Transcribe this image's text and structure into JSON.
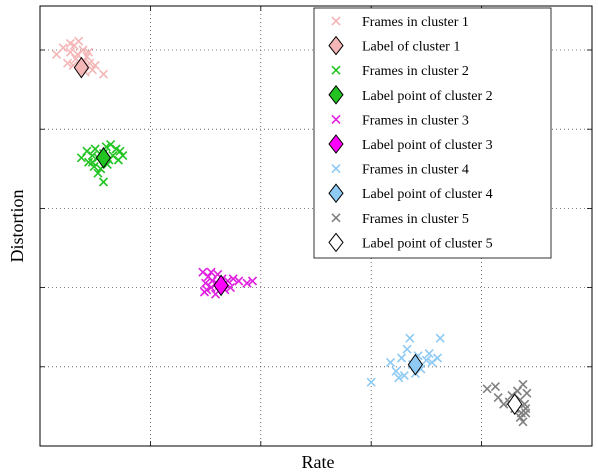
{
  "chart_data": {
    "type": "scatter",
    "title": "",
    "xlabel": "Rate",
    "ylabel": "Distortion",
    "xlim": [
      0,
      10
    ],
    "ylim": [
      0,
      10
    ],
    "xticks": [
      0,
      2,
      4,
      6,
      8,
      10
    ],
    "yticks": [
      0,
      1.8,
      3.6,
      5.4,
      7.2,
      9.0
    ],
    "xtick_labels_visible": false,
    "ytick_labels_visible": false,
    "grid": true,
    "legend_position": "top-right",
    "series": [
      {
        "name": "Frames in cluster 1",
        "label_name": "Label of cluster 1",
        "color": "#f4b6b6",
        "label_fill": "#f4b6b6",
        "points": [
          [
            0.3,
            8.9
          ],
          [
            0.42,
            9.05
          ],
          [
            0.5,
            8.7
          ],
          [
            0.55,
            8.95
          ],
          [
            0.62,
            9.1
          ],
          [
            0.65,
            8.8
          ],
          [
            0.7,
            9.2
          ],
          [
            0.75,
            8.6
          ],
          [
            0.78,
            9.0
          ],
          [
            0.8,
            8.75
          ],
          [
            0.82,
            8.5
          ],
          [
            0.85,
            8.85
          ],
          [
            0.9,
            8.7
          ],
          [
            0.95,
            8.55
          ],
          [
            0.6,
            8.65
          ],
          [
            0.68,
            8.9
          ],
          [
            0.88,
            8.95
          ],
          [
            0.55,
            9.15
          ],
          [
            1.0,
            8.65
          ],
          [
            1.15,
            8.45
          ]
        ],
        "label_point": [
          0.75,
          8.6
        ]
      },
      {
        "name": "Frames in cluster 2",
        "label_name": "Label point of cluster 2",
        "color": "#22c422",
        "label_fill": "#22c422",
        "points": [
          [
            0.75,
            6.55
          ],
          [
            0.85,
            6.7
          ],
          [
            0.88,
            6.45
          ],
          [
            0.95,
            6.6
          ],
          [
            0.98,
            6.35
          ],
          [
            1.0,
            6.75
          ],
          [
            1.05,
            6.55
          ],
          [
            1.1,
            6.3
          ],
          [
            1.15,
            6.65
          ],
          [
            1.2,
            6.8
          ],
          [
            1.25,
            6.5
          ],
          [
            1.28,
            6.85
          ],
          [
            1.32,
            6.6
          ],
          [
            1.38,
            6.75
          ],
          [
            1.42,
            6.5
          ],
          [
            1.45,
            6.7
          ],
          [
            1.5,
            6.6
          ],
          [
            1.05,
            6.2
          ],
          [
            1.15,
            6.0
          ],
          [
            0.95,
            6.45
          ],
          [
            1.22,
            6.4
          ]
        ],
        "label_point": [
          1.15,
          6.55
        ]
      },
      {
        "name": "Frames in cluster 3",
        "label_name": "Label point of cluster 3",
        "color": "#e020e0",
        "label_fill": "#ff00ff",
        "points": [
          [
            2.95,
            3.95
          ],
          [
            3.0,
            3.7
          ],
          [
            3.02,
            3.55
          ],
          [
            3.05,
            3.85
          ],
          [
            3.1,
            3.6
          ],
          [
            3.12,
            3.75
          ],
          [
            3.18,
            3.45
          ],
          [
            3.22,
            3.9
          ],
          [
            3.25,
            3.65
          ],
          [
            3.3,
            3.8
          ],
          [
            3.35,
            3.55
          ],
          [
            3.4,
            3.75
          ],
          [
            3.45,
            3.6
          ],
          [
            3.5,
            3.8
          ],
          [
            3.6,
            3.75
          ],
          [
            3.75,
            3.7
          ],
          [
            3.85,
            3.75
          ],
          [
            3.1,
            3.95
          ],
          [
            2.98,
            3.5
          ],
          [
            3.2,
            3.7
          ]
        ],
        "label_point": [
          3.28,
          3.65
        ]
      },
      {
        "name": "Frames in cluster 4",
        "label_name": "Label point of cluster 4",
        "color": "#8ecaf4",
        "label_fill": "#8ecaf4",
        "points": [
          [
            6.0,
            1.45
          ],
          [
            6.35,
            1.9
          ],
          [
            6.45,
            1.7
          ],
          [
            6.55,
            2.0
          ],
          [
            6.6,
            1.6
          ],
          [
            6.65,
            2.2
          ],
          [
            6.7,
            2.45
          ],
          [
            6.75,
            1.85
          ],
          [
            6.8,
            1.65
          ],
          [
            6.85,
            2.05
          ],
          [
            6.9,
            1.75
          ],
          [
            7.0,
            1.95
          ],
          [
            7.05,
            2.1
          ],
          [
            7.1,
            1.9
          ],
          [
            7.2,
            2.0
          ],
          [
            7.25,
            2.45
          ],
          [
            6.5,
            1.55
          ]
        ],
        "label_point": [
          6.8,
          1.85
        ]
      },
      {
        "name": "Frames in cluster 5",
        "label_name": "Label point of cluster 5",
        "color": "#808080",
        "label_fill": "#ffffff",
        "points": [
          [
            8.1,
            1.3
          ],
          [
            8.25,
            1.35
          ],
          [
            8.3,
            1.1
          ],
          [
            8.4,
            0.95
          ],
          [
            8.55,
            1.15
          ],
          [
            8.6,
            0.85
          ],
          [
            8.65,
            1.25
          ],
          [
            8.7,
            1.05
          ],
          [
            8.72,
            0.75
          ],
          [
            8.75,
            1.4
          ],
          [
            8.78,
            0.95
          ],
          [
            8.8,
            0.85
          ],
          [
            8.82,
            1.2
          ],
          [
            8.7,
            0.65
          ],
          [
            8.75,
            0.55
          ],
          [
            8.8,
            0.75
          ],
          [
            8.5,
            1.0
          ]
        ],
        "label_point": [
          8.6,
          0.95
        ]
      }
    ]
  }
}
